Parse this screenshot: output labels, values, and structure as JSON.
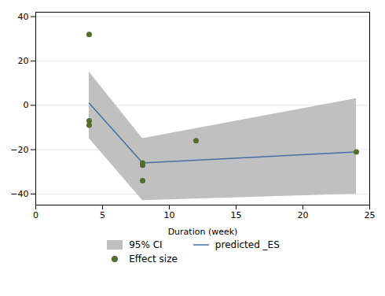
{
  "chart_data": {
    "type": "line",
    "xlabel": "Duration (week)",
    "xlim": [
      0,
      25
    ],
    "ylim": [
      -45,
      42
    ],
    "xticks": [
      0,
      5,
      10,
      15,
      20,
      25
    ],
    "yticks": [
      -40,
      -20,
      0,
      20,
      40
    ],
    "grid": true,
    "legend": "bottom",
    "series": [
      {
        "name": "95% CI",
        "type": "area",
        "color": "#c0c0c0",
        "x": [
          4,
          8,
          24
        ],
        "upper": [
          15,
          -15,
          3
        ],
        "lower": [
          -15,
          -43,
          -40
        ]
      },
      {
        "name": "predicted _ES",
        "type": "line",
        "color": "#4a6fa0",
        "x": [
          4,
          8,
          24
        ],
        "values": [
          1,
          -26,
          -21
        ]
      },
      {
        "name": "Effect size",
        "type": "scatter",
        "color": "#556b2f",
        "marker": "circle",
        "x": [
          4,
          4,
          4,
          8,
          8,
          8,
          12,
          24
        ],
        "values": [
          32,
          -7,
          -9,
          -26,
          -27,
          -34,
          -16,
          -21
        ]
      }
    ]
  }
}
